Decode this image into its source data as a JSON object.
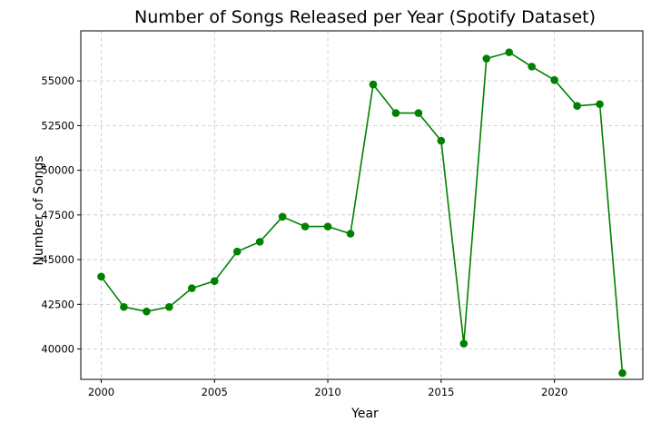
{
  "chart_data": {
    "type": "line",
    "title": "Number of Songs Released per Year (Spotify Dataset)",
    "xlabel": "Year",
    "ylabel": "Number of Songs",
    "xlim": [
      1999.1,
      2023.9
    ],
    "ylim": [
      38300,
      57800
    ],
    "xticks": [
      2000,
      2005,
      2010,
      2015,
      2020
    ],
    "yticks": [
      40000,
      42500,
      45000,
      47500,
      50000,
      52500,
      55000
    ],
    "grid": true,
    "grid_style": "dashed",
    "color": "#008000",
    "marker": "circle",
    "x": [
      2000,
      2001,
      2002,
      2003,
      2004,
      2005,
      2006,
      2007,
      2008,
      2009,
      2010,
      2011,
      2012,
      2013,
      2014,
      2015,
      2016,
      2017,
      2018,
      2019,
      2020,
      2021,
      2022,
      2023
    ],
    "y": [
      44050,
      42350,
      42100,
      42350,
      43400,
      43800,
      45450,
      46000,
      47400,
      46850,
      46850,
      46450,
      54800,
      53200,
      53200,
      51650,
      40300,
      56250,
      56600,
      55800,
      55050,
      53600,
      53700,
      38650
    ]
  }
}
